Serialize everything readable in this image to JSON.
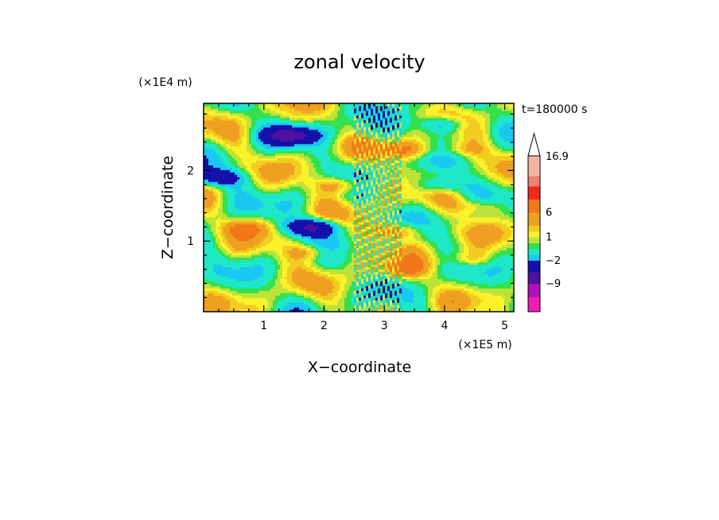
{
  "chart_data": {
    "type": "heatmap",
    "title": "zonal velocity",
    "xlabel": "X−coordinate",
    "ylabel": "Z−coordinate",
    "x_unit": "(×1E5 m)",
    "y_unit": "(×1E4 m)",
    "time_label": "t=180000 s",
    "xlim": [
      0,
      5.15
    ],
    "ylim": [
      0,
      2.95
    ],
    "x_ticks": [
      "1",
      "2",
      "3",
      "4",
      "5"
    ],
    "y_ticks": [
      "1",
      "2"
    ],
    "colorbar": {
      "labels": [
        "16.9",
        "6",
        "1",
        "−2",
        "−9"
      ],
      "levels": [
        {
          "upper": 16.9,
          "color": "#f4b4a4"
        },
        {
          "upper": 12,
          "color": "#f08070"
        },
        {
          "upper": 9,
          "color": "#ef2a1c"
        },
        {
          "upper": 6,
          "color": "#f07818"
        },
        {
          "upper": 3,
          "color": "#f0a020"
        },
        {
          "upper": 2,
          "color": "#f2cc20"
        },
        {
          "upper": 1.5,
          "color": "#fbf22a"
        },
        {
          "upper": 1,
          "color": "#bde33a"
        },
        {
          "upper": 0.5,
          "color": "#34e04c"
        },
        {
          "upper": 0,
          "color": "#1ee8c8"
        },
        {
          "upper": -1,
          "color": "#19c8f2"
        },
        {
          "upper": -2,
          "color": "#1410a8"
        },
        {
          "upper": -5,
          "color": "#5010a0"
        },
        {
          "upper": -9,
          "color": "#b010b8"
        },
        {
          "upper": -12,
          "color": "#f01cb4"
        }
      ]
    },
    "features": [
      {
        "x": 1.45,
        "z": 2.5,
        "value": -6
      },
      {
        "x": 0.25,
        "z": 1.9,
        "value": -4
      },
      {
        "x": 1.8,
        "z": 1.2,
        "value": -6
      },
      {
        "x": 3.95,
        "z": 1.8,
        "value": -3
      },
      {
        "x": 3.95,
        "z": 2.65,
        "value": -3
      },
      {
        "x": 2.3,
        "z": 1.8,
        "value": 3
      },
      {
        "x": 3.3,
        "z": 2.3,
        "value": 3
      },
      {
        "x": 3.2,
        "z": 1.15,
        "value": 3
      },
      {
        "x": 3.3,
        "z": 0.6,
        "value": 2
      },
      {
        "x": 1.8,
        "z": 0.85,
        "value": 2.5
      },
      {
        "x": 0.7,
        "z": 1.2,
        "value": 2
      },
      {
        "x": 4.6,
        "z": 1.5,
        "value": 2
      },
      {
        "x": 4.4,
        "z": 0.75,
        "value": 2
      },
      {
        "x": 4.2,
        "z": 2.3,
        "value": 2
      },
      {
        "x": 2.7,
        "z": 2.55,
        "value": -1
      }
    ]
  }
}
